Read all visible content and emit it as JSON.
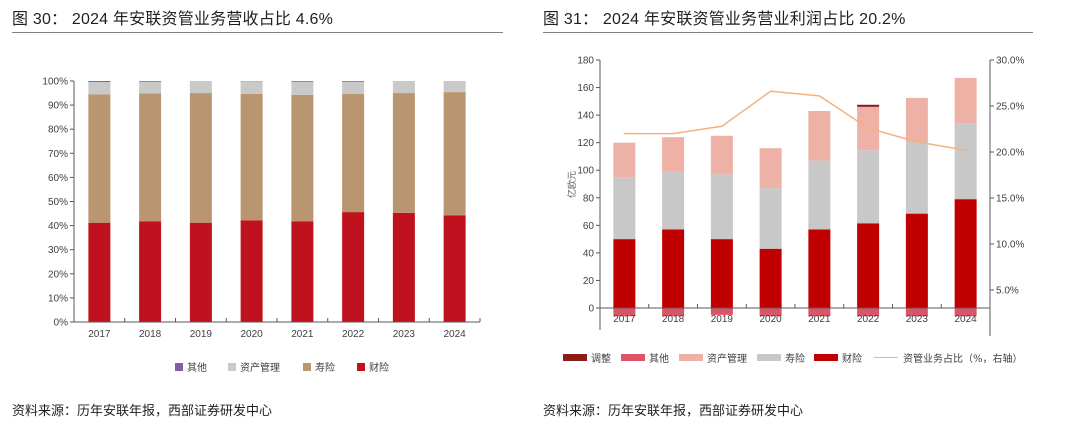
{
  "figures": [
    {
      "title": "图 30：  2024 年安联资管业务营收占比 4.6%",
      "source": "资料来源：历年安联年报，西部证券研发中心"
    },
    {
      "title": "图 31：  2024 年安联资管业务营业利润占比 20.2%",
      "source": "资料来源：历年安联年报，西部证券研发中心"
    }
  ],
  "chart_data": [
    {
      "type": "bar",
      "stacked": true,
      "title": "2024 年安联资管业务营收占比 4.6%",
      "xlabel": "",
      "ylabel": "",
      "categories": [
        "2017",
        "2018",
        "2019",
        "2020",
        "2021",
        "2022",
        "2023",
        "2024"
      ],
      "ylim": [
        0,
        100
      ],
      "yticks": [
        0,
        10,
        20,
        30,
        40,
        50,
        60,
        70,
        80,
        90,
        100
      ],
      "ytick_labels": [
        "0%",
        "10%",
        "20%",
        "30%",
        "40%",
        "50%",
        "60%",
        "70%",
        "80%",
        "90%",
        "100%"
      ],
      "unit": "%",
      "grid": false,
      "legend_position": "bottom",
      "legend_order": [
        "其他",
        "资产管理",
        "寿险",
        "财险"
      ],
      "series": [
        {
          "name": "财险",
          "color": "#C0111F",
          "values": [
            41.2,
            41.7,
            41.2,
            42.2,
            41.7,
            45.6,
            45.3,
            44.3
          ]
        },
        {
          "name": "寿险",
          "color": "#B9966F",
          "values": [
            53.3,
            53.1,
            53.8,
            52.4,
            52.5,
            49.0,
            49.7,
            51.1
          ]
        },
        {
          "name": "资产管理",
          "color": "#C9C9C9",
          "values": [
            5.1,
            4.9,
            5.0,
            5.3,
            5.5,
            5.1,
            5.0,
            4.6
          ]
        },
        {
          "name": "其他",
          "color": "#7E5FA8",
          "values": [
            0.4,
            0.3,
            0.0,
            0.1,
            0.3,
            0.3,
            0.0,
            0.0
          ]
        }
      ]
    },
    {
      "type": "bar",
      "stacked": true,
      "title": "2024 年安联资管业务营业利润占比 20.2%",
      "xlabel": "",
      "ylabel": "亿欧元",
      "categories": [
        "2017",
        "2018",
        "2019",
        "2020",
        "2021",
        "2022",
        "2023",
        "2024"
      ],
      "ylim": [
        -20,
        180
      ],
      "yticks": [
        0,
        20,
        40,
        60,
        80,
        100,
        120,
        140,
        160,
        180
      ],
      "ytick_labels": [
        "0",
        "20",
        "40",
        "60",
        "80",
        "100",
        "120",
        "140",
        "160",
        "180"
      ],
      "y2lim": [
        0,
        30
      ],
      "y2ticks": [
        5,
        10,
        15,
        20,
        25,
        30
      ],
      "y2tick_labels": [
        "5.0%",
        "10.0%",
        "15.0%",
        "20.0%",
        "25.0%",
        "30.0%"
      ],
      "grid": false,
      "legend_position": "bottom",
      "legend_order": [
        "调整",
        "其他",
        "资产管理",
        "寿险",
        "财险",
        "资管业务占比（%，右轴）"
      ],
      "series": [
        {
          "name": "财险",
          "color": "#C00000",
          "values": [
            50,
            57,
            50,
            43,
            57,
            61.5,
            68.5,
            79
          ]
        },
        {
          "name": "寿险",
          "color": "#C8C8C8",
          "values": [
            45,
            42,
            47,
            44,
            50,
            53,
            52,
            55
          ]
        },
        {
          "name": "资产管理",
          "color": "#EDB1A6",
          "values": [
            25,
            25,
            28,
            29,
            36,
            31.5,
            32,
            33
          ]
        },
        {
          "name": "调整",
          "color": "#8C1C1C",
          "values": [
            0,
            0,
            0,
            0,
            0,
            1.5,
            0,
            0
          ]
        },
        {
          "name": "其他",
          "color": "#DC5468",
          "values": [
            -6,
            -6,
            -5,
            -6,
            -6,
            -6,
            -6,
            -6
          ]
        }
      ],
      "line_series": {
        "name": "资管业务占比（%，右轴）",
        "axis": "right",
        "color": "#F2B27E",
        "values": [
          22.0,
          22.0,
          22.8,
          26.6,
          26.1,
          22.6,
          21.1,
          20.2
        ]
      }
    }
  ]
}
